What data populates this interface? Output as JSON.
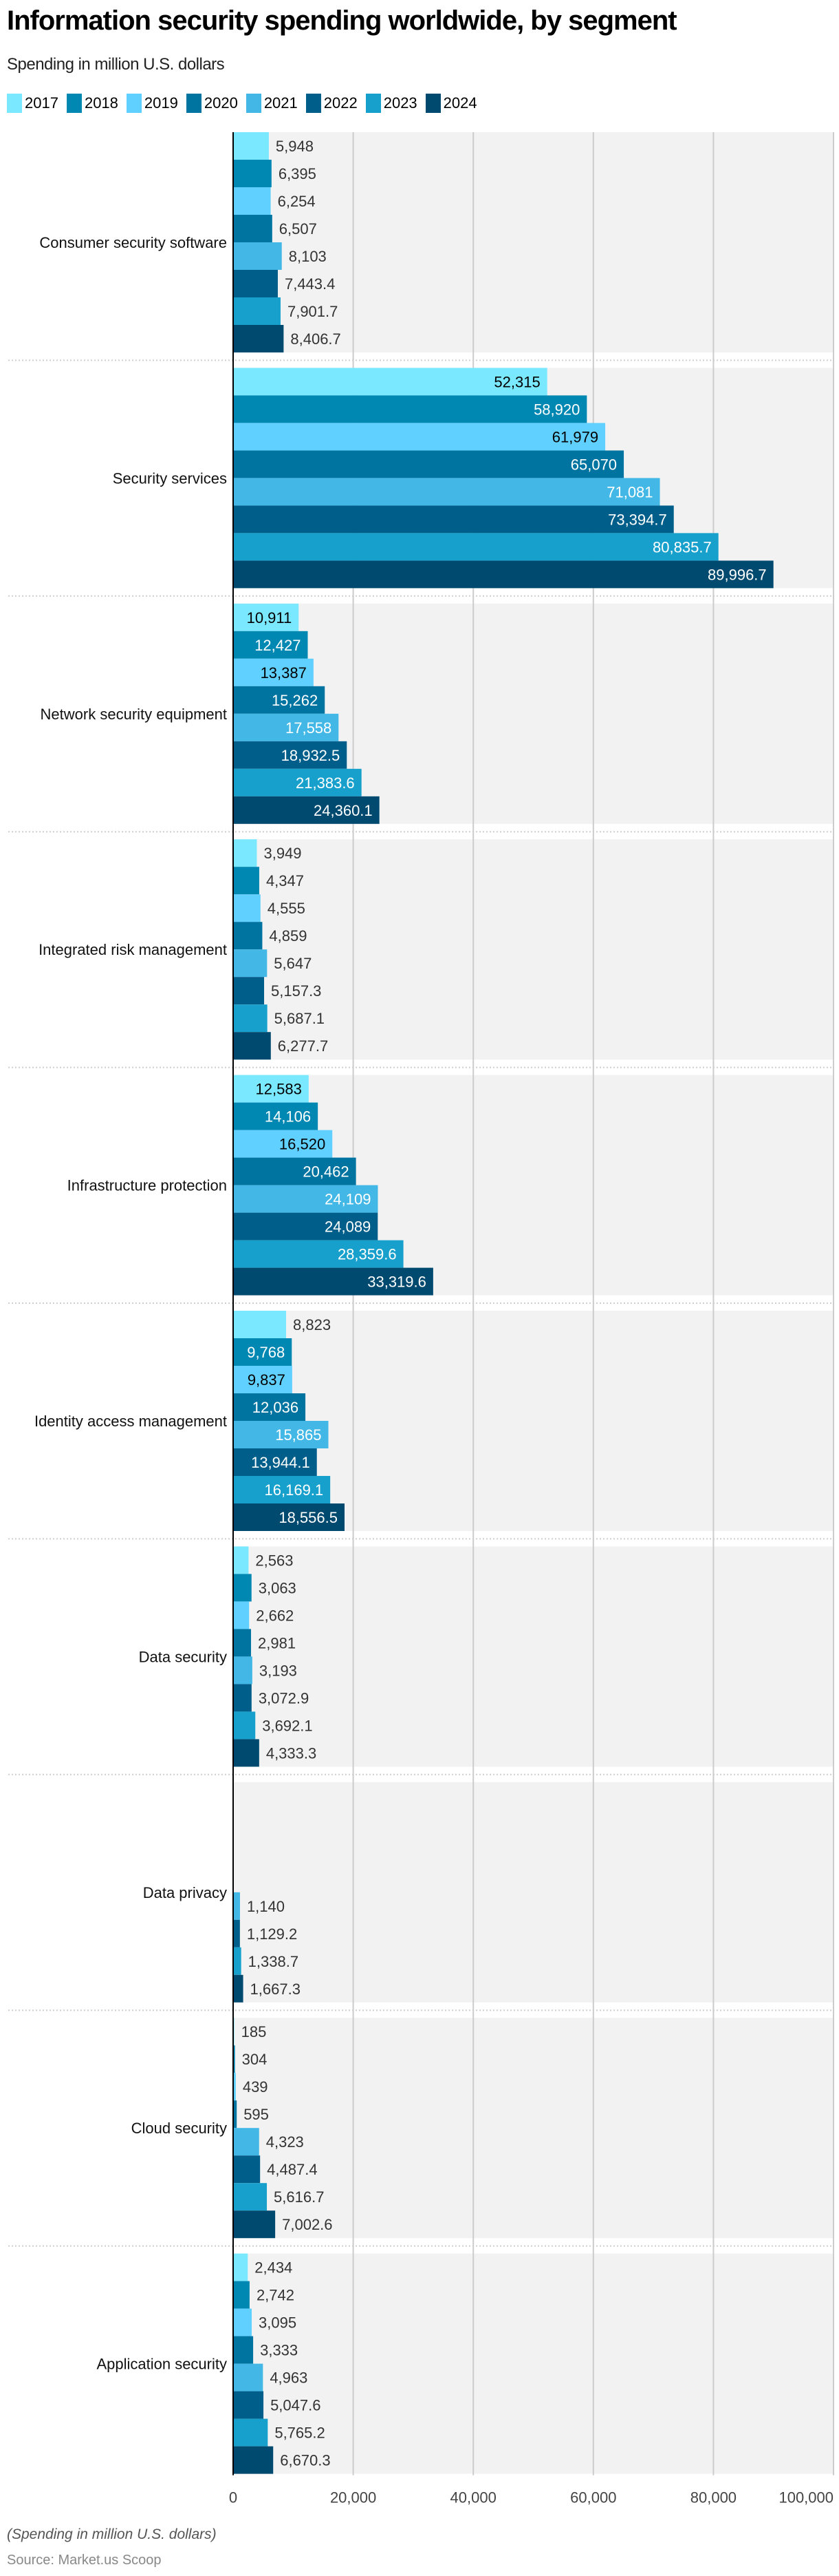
{
  "chart_data": {
    "type": "bar",
    "orientation": "horizontal",
    "title": "Information security spending worldwide, by segment",
    "subtitle": "Spending in million U.S. dollars",
    "xlabel": "",
    "ylabel": "",
    "xlim": [
      0,
      100000
    ],
    "xticks": [
      "0",
      "20,000",
      "40,000",
      "60,000",
      "80,000",
      "100,000"
    ],
    "xtick_values": [
      0,
      20000,
      40000,
      60000,
      80000,
      100000
    ],
    "grid": true,
    "legend_position": "top-left",
    "categories": [
      "Consumer security software",
      "Security services",
      "Network security equipment",
      "Integrated risk management",
      "Infrastructure protection",
      "Identity access management",
      "Data security",
      "Data privacy",
      "Cloud security",
      "Application security"
    ],
    "series": [
      {
        "name": "2017",
        "color": "#7ae8ff",
        "values": [
          5948,
          52315,
          10911,
          3949,
          12583,
          8823,
          2563,
          null,
          185,
          2434
        ],
        "labels": [
          "5,948",
          "52,315",
          "10,911",
          "3,949",
          "12,583",
          "8,823",
          "2,563",
          null,
          "185",
          "2,434"
        ]
      },
      {
        "name": "2018",
        "color": "#0088b3",
        "values": [
          6395,
          58920,
          12427,
          4347,
          14106,
          9768,
          3063,
          null,
          304,
          2742
        ],
        "labels": [
          "6,395",
          "58,920",
          "12,427",
          "4,347",
          "14,106",
          "9,768",
          "3,063",
          null,
          "304",
          "2,742"
        ]
      },
      {
        "name": "2019",
        "color": "#5fd0ff",
        "values": [
          6254,
          61979,
          13387,
          4555,
          16520,
          9837,
          2662,
          null,
          439,
          3095
        ],
        "labels": [
          "6,254",
          "61,979",
          "13,387",
          "4,555",
          "16,520",
          "9,837",
          "2,662",
          null,
          "439",
          "3,095"
        ]
      },
      {
        "name": "2020",
        "color": "#0074a0",
        "values": [
          6507,
          65070,
          15262,
          4859,
          20462,
          12036,
          2981,
          null,
          595,
          3333
        ],
        "labels": [
          "6,507",
          "65,070",
          "15,262",
          "4,859",
          "20,462",
          "12,036",
          "2,981",
          null,
          "595",
          "3,333"
        ]
      },
      {
        "name": "2021",
        "color": "#43b8e6",
        "values": [
          8103,
          71081,
          17558,
          5647,
          24109,
          15865,
          3193,
          1140,
          4323,
          4963
        ],
        "labels": [
          "8,103",
          "71,081",
          "17,558",
          "5,647",
          "24,109",
          "15,865",
          "3,193",
          "1,140",
          "4,323",
          "4,963"
        ]
      },
      {
        "name": "2022",
        "color": "#005f8a",
        "values": [
          7443.4,
          73394.7,
          18932.5,
          5157.3,
          24089,
          13944.1,
          3072.9,
          1129.2,
          4487.4,
          5047.6
        ],
        "labels": [
          "7,443.4",
          "73,394.7",
          "18,932.5",
          "5,157.3",
          "24,089",
          "13,944.1",
          "3,072.9",
          "1,129.2",
          "4,487.4",
          "5,047.6"
        ]
      },
      {
        "name": "2023",
        "color": "#18a0cc",
        "values": [
          7901.7,
          80835.7,
          21383.6,
          5687.1,
          28359.6,
          16169.1,
          3692.1,
          1338.7,
          5616.7,
          5765.2
        ],
        "labels": [
          "7,901.7",
          "80,835.7",
          "21,383.6",
          "5,687.1",
          "28,359.6",
          "16,169.1",
          "3,692.1",
          "1,338.7",
          "5,616.7",
          "5,765.2"
        ]
      },
      {
        "name": "2024",
        "color": "#004a70",
        "values": [
          8406.7,
          89996.7,
          24360.1,
          6277.7,
          33319.6,
          18556.5,
          4333.3,
          1667.3,
          7002.6,
          6670.3
        ],
        "labels": [
          "8,406.7",
          "89,996.7",
          "24,360.1",
          "6,277.7",
          "33,319.6",
          "18,556.5",
          "4,333.3",
          "1,667.3",
          "7,002.6",
          "6,670.3"
        ]
      }
    ],
    "light_series": [
      "2017",
      "2019"
    ]
  },
  "footnote": "(Spending in million U.S. dollars)",
  "source": "Source: Market.us Scoop"
}
